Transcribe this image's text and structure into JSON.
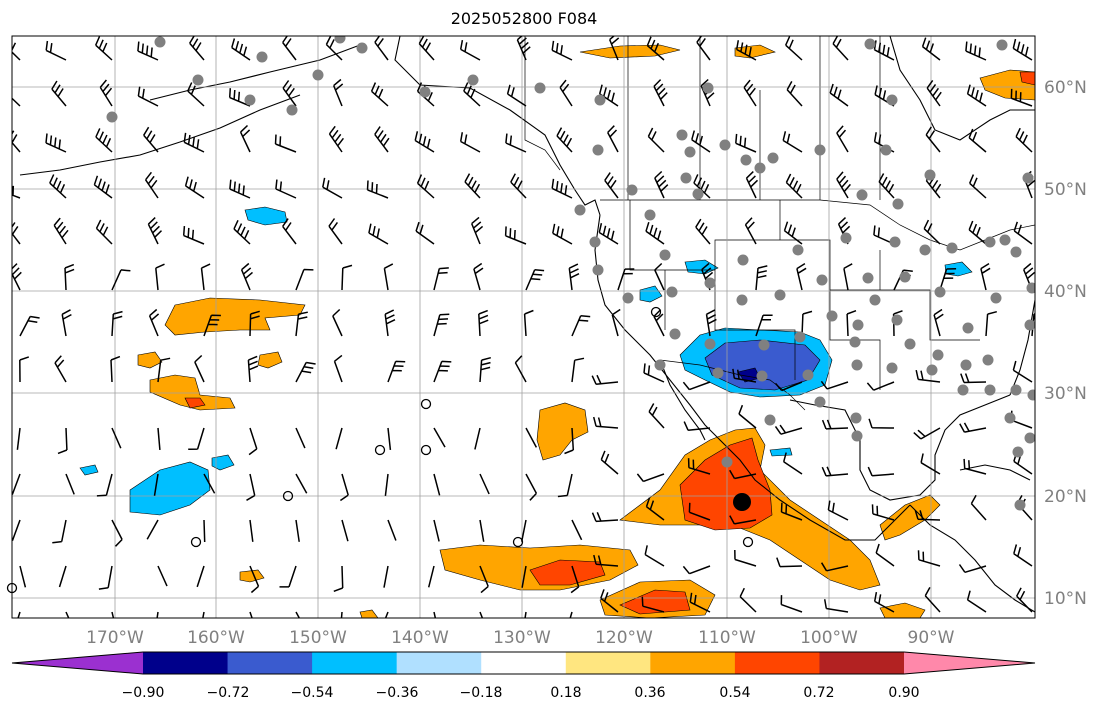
{
  "title": "2025052800 F084",
  "lon_labels": [
    "170°W",
    "160°W",
    "150°W",
    "140°W",
    "130°W",
    "120°W",
    "110°W",
    "100°W",
    "90°W"
  ],
  "lat_labels": [
    "60°N",
    "50°N",
    "40°N",
    "30°N",
    "20°N",
    "10°N"
  ],
  "colorbar": {
    "ticks": [
      "−0.90",
      "−0.72",
      "−0.54",
      "−0.36",
      "−0.18",
      "0.18",
      "0.36",
      "0.54",
      "0.72",
      "0.90"
    ],
    "colors": [
      "#9b30d0",
      "#00008b",
      "#3a5bcf",
      "#00bfff",
      "#b0e0ff",
      "#ffffff",
      "#ffe680",
      "#ffa500",
      "#ff4500",
      "#b22222",
      "#ff88aa"
    ]
  },
  "contour_colors": {
    "pos_light": "#ffa500",
    "pos_mid": "#ff4500",
    "pos_strong": "#b22222",
    "neg_light": "#00bfff",
    "neg_mid": "#3a5bcf",
    "neg_strong": "#00008b"
  },
  "station_color": "#808080"
}
